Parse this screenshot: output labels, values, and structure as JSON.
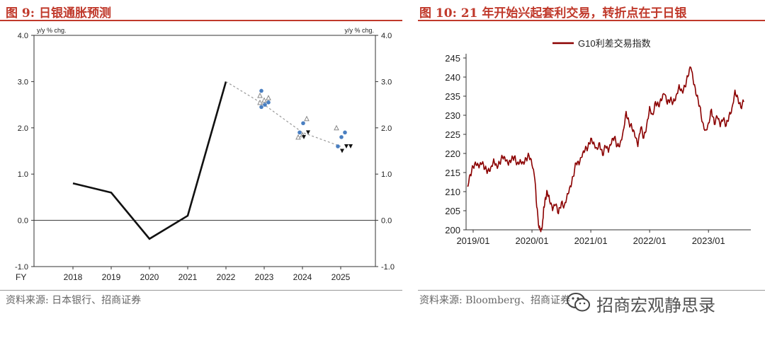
{
  "left_panel": {
    "title": "图 9:  日银通胀预测",
    "source": "资料来源:  日本银行、招商证券"
  },
  "right_panel": {
    "title": "图 10:  21 年开始兴起套利交易，转折点在于日银",
    "source": "资料来源:  Bloomberg、招商证券"
  },
  "watermark": {
    "text": "招商宏观静思录",
    "icon": "wechat-icon"
  },
  "colors": {
    "title_red": "#c0392b",
    "series_dark_red": "#8b0000",
    "forecast_blue": "#4a7fc1"
  },
  "chart_data": [
    {
      "type": "line",
      "xlabel": "FY",
      "y_unit_label_left": "y/y % chg.",
      "y_unit_label_right": "y/y % chg.",
      "ylim": [
        -1.0,
        4.0
      ],
      "yticks": [
        "4.0",
        "3.0",
        "2.0",
        "1.0",
        "0.0",
        "-1.0"
      ],
      "categories": [
        "2018",
        "2019",
        "2020",
        "2021",
        "2022",
        "2023",
        "2024",
        "2025"
      ],
      "grid": false,
      "series": [
        {
          "style": "solid",
          "x": [
            "2018",
            "2019",
            "2020",
            "2021",
            "2022"
          ],
          "values": [
            0.8,
            0.6,
            -0.4,
            0.1,
            3.0
          ]
        },
        {
          "style": "dashed",
          "x": [
            "2022",
            "2023",
            "2024",
            "2025"
          ],
          "values": [
            3.0,
            2.5,
            1.9,
            1.6
          ]
        }
      ],
      "markers": [
        {
          "x": "2023",
          "open_triangles": [
            2.55,
            2.6,
            2.65,
            2.7
          ],
          "blue_circles": [
            2.45,
            2.5,
            2.55,
            2.8
          ],
          "filled_triangles": []
        },
        {
          "x": "2024",
          "open_triangles": [
            1.8,
            1.85,
            2.2
          ],
          "blue_circles": [
            1.9,
            2.1
          ],
          "filled_triangles": [
            1.8,
            1.9
          ]
        },
        {
          "x": "2025",
          "open_triangles": [
            2.0
          ],
          "blue_circles": [
            1.6,
            1.8,
            1.9
          ],
          "filled_triangles": [
            1.5,
            1.6,
            1.6
          ]
        }
      ]
    },
    {
      "type": "line",
      "legend": "G10利差交易指数",
      "legend_position": "top-center",
      "ylim": [
        200,
        245
      ],
      "yticks": [
        "245",
        "240",
        "235",
        "230",
        "225",
        "220",
        "215",
        "210",
        "205",
        "200"
      ],
      "xticks": [
        "2019/01",
        "2020/01",
        "2021/01",
        "2022/01",
        "2023/01"
      ],
      "grid": false,
      "series": [
        {
          "name": "G10利差交易指数",
          "color": "#8b0000",
          "x": [
            2018.9,
            2018.95,
            2019.0,
            2019.05,
            2019.1,
            2019.15,
            2019.2,
            2019.25,
            2019.3,
            2019.35,
            2019.4,
            2019.45,
            2019.5,
            2019.55,
            2019.6,
            2019.65,
            2019.7,
            2019.75,
            2019.8,
            2019.85,
            2019.9,
            2019.95,
            2020.0,
            2020.05,
            2020.08,
            2020.12,
            2020.15,
            2020.18,
            2020.2,
            2020.23,
            2020.26,
            2020.3,
            2020.35,
            2020.4,
            2020.45,
            2020.5,
            2020.55,
            2020.6,
            2020.65,
            2020.7,
            2020.75,
            2020.8,
            2020.85,
            2020.9,
            2020.95,
            2021.0,
            2021.05,
            2021.1,
            2021.15,
            2021.2,
            2021.25,
            2021.3,
            2021.35,
            2021.4,
            2021.45,
            2021.5,
            2021.55,
            2021.6,
            2021.65,
            2021.7,
            2021.75,
            2021.8,
            2021.85,
            2021.9,
            2021.95,
            2022.0,
            2022.05,
            2022.1,
            2022.15,
            2022.2,
            2022.25,
            2022.3,
            2022.35,
            2022.4,
            2022.45,
            2022.5,
            2022.55,
            2022.6,
            2022.65,
            2022.7,
            2022.75,
            2022.8,
            2022.85,
            2022.9,
            2022.95,
            2023.0,
            2023.05,
            2023.1,
            2023.15,
            2023.2,
            2023.25,
            2023.3,
            2023.35,
            2023.4,
            2023.45,
            2023.5,
            2023.55,
            2023.6
          ],
          "values": [
            211.5,
            214.5,
            216.5,
            217.0,
            216.2,
            217.3,
            216.0,
            215.5,
            216.4,
            218.6,
            216.8,
            217.5,
            219.0,
            218.0,
            216.9,
            218.2,
            219.2,
            217.5,
            218.4,
            217.8,
            218.7,
            219.4,
            217.0,
            213.0,
            206.0,
            200.5,
            199.5,
            202.0,
            206.0,
            208.5,
            210.0,
            207.5,
            205.0,
            206.5,
            204.2,
            207.2,
            206.4,
            209.5,
            211.5,
            214.0,
            217.5,
            217.0,
            219.0,
            220.8,
            221.5,
            224.0,
            223.0,
            221.5,
            222.8,
            219.5,
            221.8,
            220.3,
            222.6,
            224.2,
            222.0,
            222.8,
            226.0,
            231.0,
            228.0,
            226.6,
            224.4,
            221.8,
            226.8,
            224.0,
            227.5,
            232.3,
            230.2,
            233.6,
            232.4,
            233.8,
            235.5,
            232.9,
            234.1,
            233.5,
            235.2,
            238.0,
            236.4,
            237.5,
            240.1,
            242.5,
            238.0,
            235.0,
            232.5,
            228.2,
            226.2,
            228.0,
            231.6,
            227.6,
            229.5,
            227.0,
            228.9,
            227.2,
            230.0,
            232.0,
            236.6,
            234.6,
            232.0,
            233.5
          ]
        }
      ]
    }
  ]
}
